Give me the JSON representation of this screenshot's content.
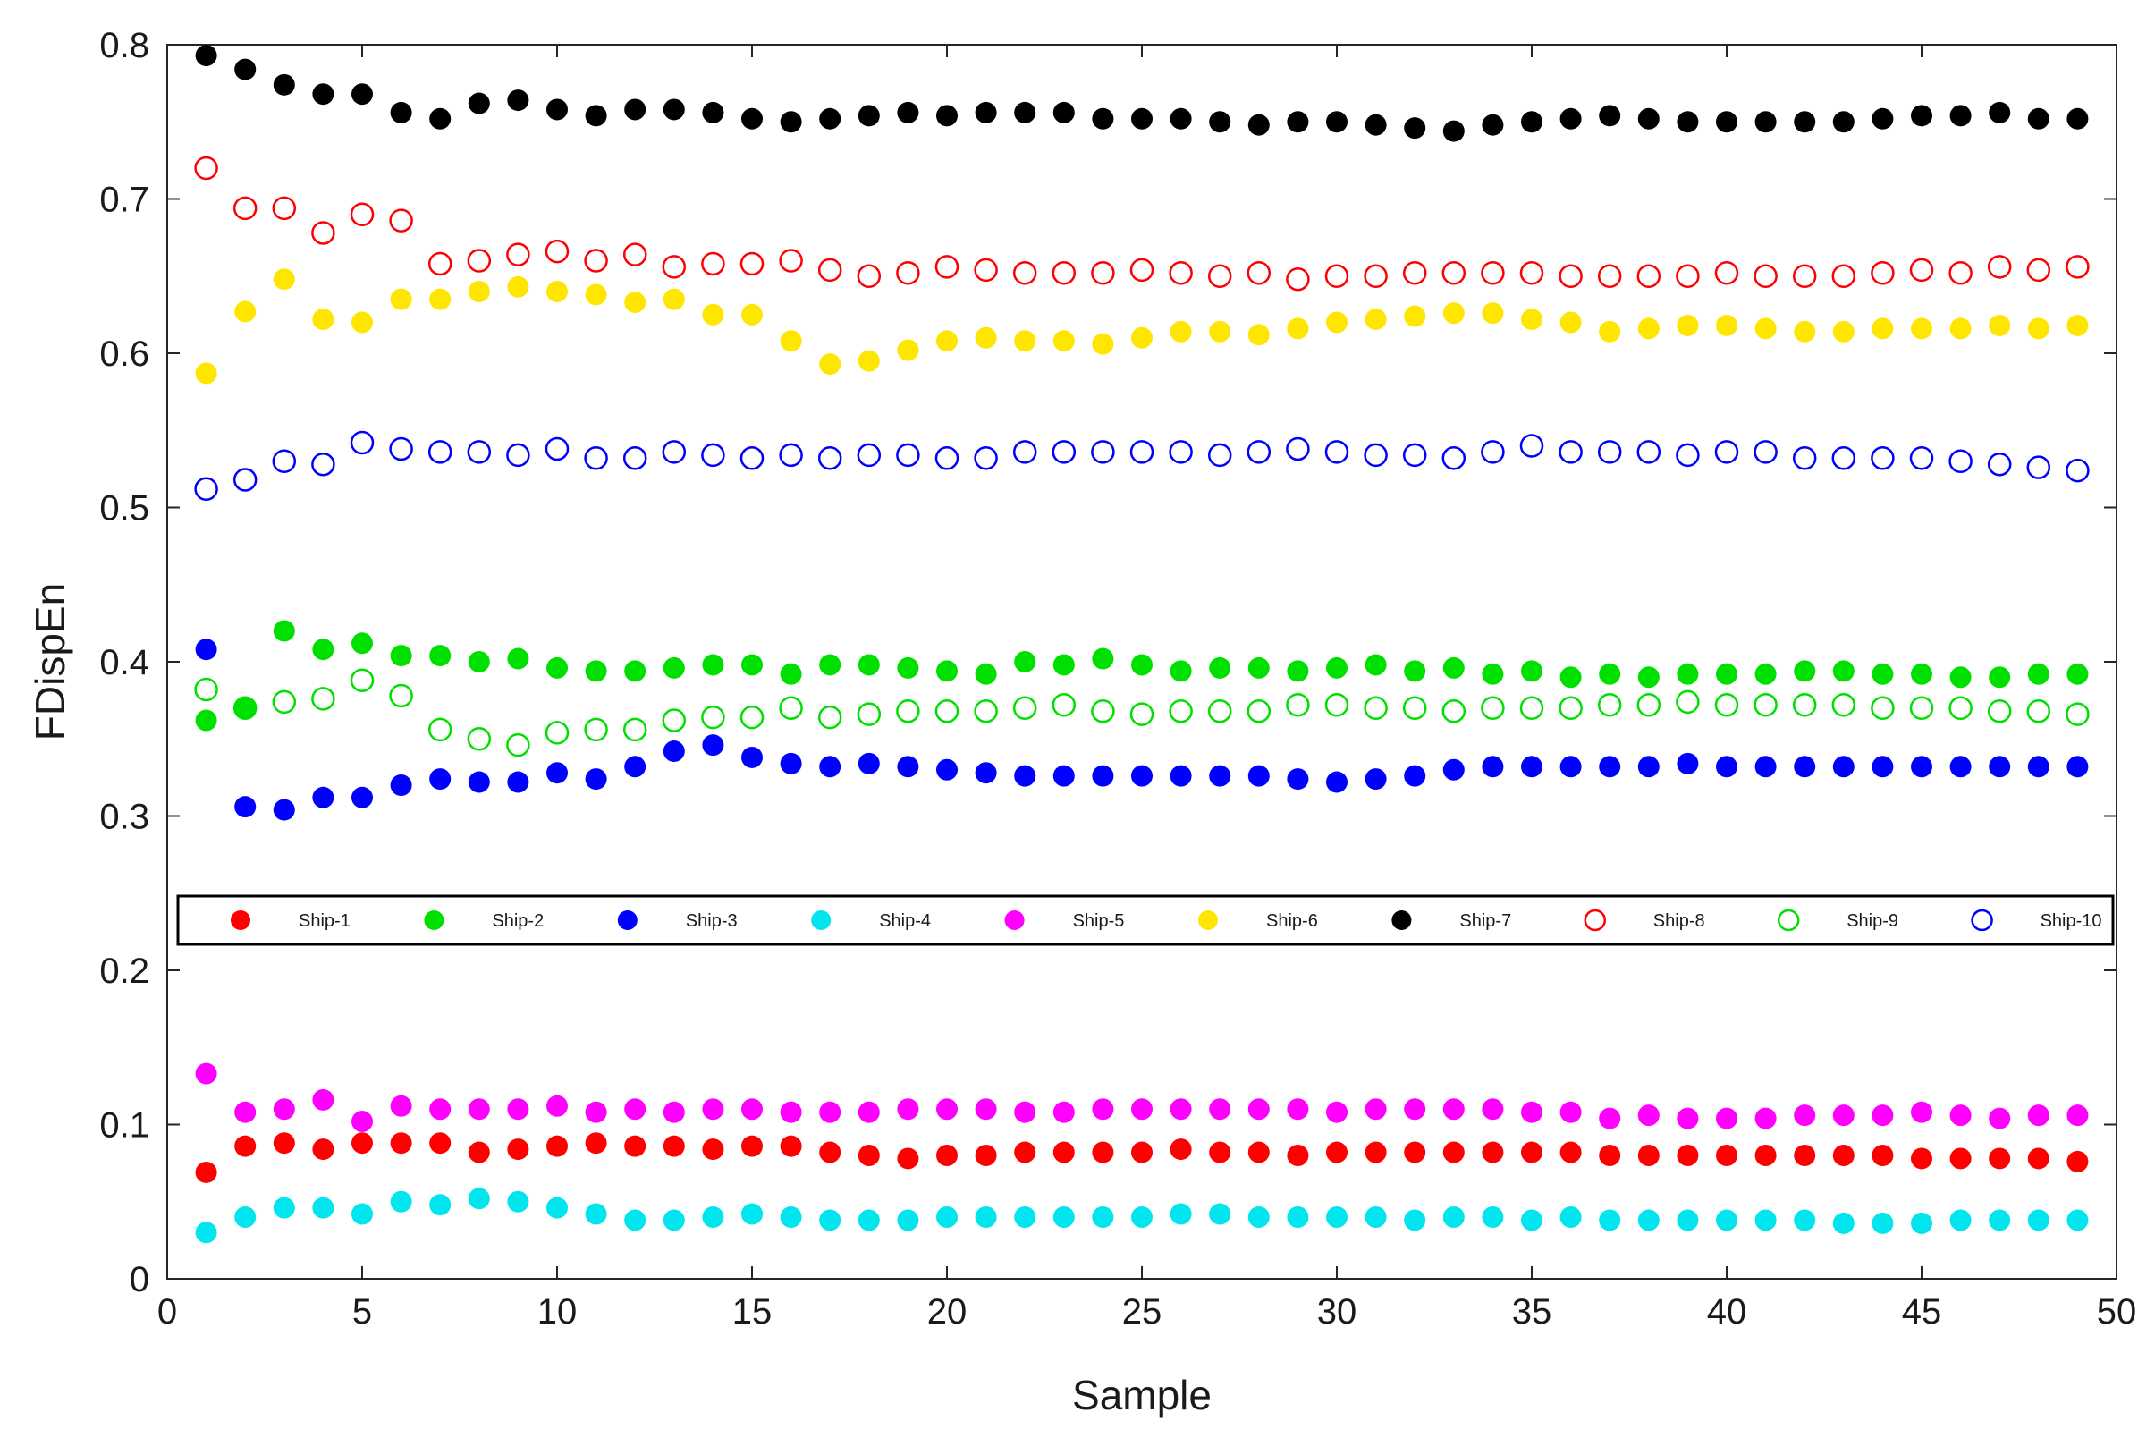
{
  "chart_data": {
    "type": "scatter",
    "title": "",
    "xlabel": "Sample",
    "ylabel": "FDispEn",
    "xlim": [
      0,
      50
    ],
    "ylim": [
      0,
      0.8
    ],
    "xticks": [
      "0",
      "5",
      "10",
      "15",
      "20",
      "25",
      "30",
      "35",
      "40",
      "45",
      "50"
    ],
    "yticks": [
      "0",
      "0.1",
      "0.2",
      "0.3",
      "0.4",
      "0.5",
      "0.6",
      "0.7",
      "0.8"
    ],
    "grid": false,
    "legend_position": "middle",
    "x": [
      1,
      2,
      3,
      4,
      5,
      6,
      7,
      8,
      9,
      10,
      11,
      12,
      13,
      14,
      15,
      16,
      17,
      18,
      19,
      20,
      21,
      22,
      23,
      24,
      25,
      26,
      27,
      28,
      29,
      30,
      31,
      32,
      33,
      34,
      35,
      36,
      37,
      38,
      39,
      40,
      41,
      42,
      43,
      44,
      45,
      46,
      47,
      48,
      49
    ],
    "series": [
      {
        "name": "Ship-1",
        "color": "#ff0000",
        "marker": "filled",
        "values": [
          0.069,
          0.086,
          0.088,
          0.084,
          0.088,
          0.088,
          0.088,
          0.082,
          0.084,
          0.086,
          0.088,
          0.086,
          0.086,
          0.084,
          0.086,
          0.086,
          0.082,
          0.08,
          0.078,
          0.08,
          0.08,
          0.082,
          0.082,
          0.082,
          0.082,
          0.084,
          0.082,
          0.082,
          0.08,
          0.082,
          0.082,
          0.082,
          0.082,
          0.082,
          0.082,
          0.082,
          0.08,
          0.08,
          0.08,
          0.08,
          0.08,
          0.08,
          0.08,
          0.08,
          0.078,
          0.078,
          0.078,
          0.078,
          0.076
        ]
      },
      {
        "name": "Ship-2",
        "color": "#00e000",
        "marker": "filled",
        "values": [
          0.362,
          0.37,
          0.42,
          0.408,
          0.412,
          0.404,
          0.404,
          0.4,
          0.402,
          0.396,
          0.394,
          0.394,
          0.396,
          0.398,
          0.398,
          0.392,
          0.398,
          0.398,
          0.396,
          0.394,
          0.392,
          0.4,
          0.398,
          0.402,
          0.398,
          0.394,
          0.396,
          0.396,
          0.394,
          0.396,
          0.398,
          0.394,
          0.396,
          0.392,
          0.394,
          0.39,
          0.392,
          0.39,
          0.392,
          0.392,
          0.392,
          0.394,
          0.394,
          0.392,
          0.392,
          0.39,
          0.39,
          0.392,
          0.392
        ]
      },
      {
        "name": "Ship-3",
        "color": "#0000ff",
        "marker": "filled",
        "values": [
          0.408,
          0.306,
          0.304,
          0.312,
          0.312,
          0.32,
          0.324,
          0.322,
          0.322,
          0.328,
          0.324,
          0.332,
          0.342,
          0.346,
          0.338,
          0.334,
          0.332,
          0.334,
          0.332,
          0.33,
          0.328,
          0.326,
          0.326,
          0.326,
          0.326,
          0.326,
          0.326,
          0.326,
          0.324,
          0.322,
          0.324,
          0.326,
          0.33,
          0.332,
          0.332,
          0.332,
          0.332,
          0.332,
          0.334,
          0.332,
          0.332,
          0.332,
          0.332,
          0.332,
          0.332,
          0.332,
          0.332,
          0.332,
          0.332
        ]
      },
      {
        "name": "Ship-4",
        "color": "#00e5ee",
        "marker": "filled",
        "values": [
          0.03,
          0.04,
          0.046,
          0.046,
          0.042,
          0.05,
          0.048,
          0.052,
          0.05,
          0.046,
          0.042,
          0.038,
          0.038,
          0.04,
          0.042,
          0.04,
          0.038,
          0.038,
          0.038,
          0.04,
          0.04,
          0.04,
          0.04,
          0.04,
          0.04,
          0.042,
          0.042,
          0.04,
          0.04,
          0.04,
          0.04,
          0.038,
          0.04,
          0.04,
          0.038,
          0.04,
          0.038,
          0.038,
          0.038,
          0.038,
          0.038,
          0.038,
          0.036,
          0.036,
          0.036,
          0.038,
          0.038,
          0.038,
          0.038
        ]
      },
      {
        "name": "Ship-5",
        "color": "#ff00ff",
        "marker": "filled",
        "values": [
          0.133,
          0.108,
          0.11,
          0.116,
          0.102,
          0.112,
          0.11,
          0.11,
          0.11,
          0.112,
          0.108,
          0.11,
          0.108,
          0.11,
          0.11,
          0.108,
          0.108,
          0.108,
          0.11,
          0.11,
          0.11,
          0.108,
          0.108,
          0.11,
          0.11,
          0.11,
          0.11,
          0.11,
          0.11,
          0.108,
          0.11,
          0.11,
          0.11,
          0.11,
          0.108,
          0.108,
          0.104,
          0.106,
          0.104,
          0.104,
          0.104,
          0.106,
          0.106,
          0.106,
          0.108,
          0.106,
          0.104,
          0.106,
          0.106
        ]
      },
      {
        "name": "Ship-6",
        "color": "#ffe600",
        "marker": "filled",
        "values": [
          0.587,
          0.627,
          0.648,
          0.622,
          0.62,
          0.635,
          0.635,
          0.64,
          0.643,
          0.64,
          0.638,
          0.633,
          0.635,
          0.625,
          0.625,
          0.608,
          0.593,
          0.595,
          0.602,
          0.608,
          0.61,
          0.608,
          0.608,
          0.606,
          0.61,
          0.614,
          0.614,
          0.612,
          0.616,
          0.62,
          0.622,
          0.624,
          0.626,
          0.626,
          0.622,
          0.62,
          0.614,
          0.616,
          0.618,
          0.618,
          0.616,
          0.614,
          0.614,
          0.616,
          0.616,
          0.616,
          0.618,
          0.616,
          0.618
        ]
      },
      {
        "name": "Ship-7",
        "color": "#000000",
        "marker": "filled",
        "values": [
          0.793,
          0.784,
          0.774,
          0.768,
          0.768,
          0.756,
          0.752,
          0.762,
          0.764,
          0.758,
          0.754,
          0.758,
          0.758,
          0.756,
          0.752,
          0.75,
          0.752,
          0.754,
          0.756,
          0.754,
          0.756,
          0.756,
          0.756,
          0.752,
          0.752,
          0.752,
          0.75,
          0.748,
          0.75,
          0.75,
          0.748,
          0.746,
          0.744,
          0.748,
          0.75,
          0.752,
          0.754,
          0.752,
          0.75,
          0.75,
          0.75,
          0.75,
          0.75,
          0.752,
          0.754,
          0.754,
          0.756,
          0.752,
          0.752
        ]
      },
      {
        "name": "Ship-8",
        "color": "#ff0000",
        "marker": "open",
        "values": [
          0.72,
          0.694,
          0.694,
          0.678,
          0.69,
          0.686,
          0.658,
          0.66,
          0.664,
          0.666,
          0.66,
          0.664,
          0.656,
          0.658,
          0.658,
          0.66,
          0.654,
          0.65,
          0.652,
          0.656,
          0.654,
          0.652,
          0.652,
          0.652,
          0.654,
          0.652,
          0.65,
          0.652,
          0.648,
          0.65,
          0.65,
          0.652,
          0.652,
          0.652,
          0.652,
          0.65,
          0.65,
          0.65,
          0.65,
          0.652,
          0.65,
          0.65,
          0.65,
          0.652,
          0.654,
          0.652,
          0.656,
          0.654,
          0.656
        ]
      },
      {
        "name": "Ship-9",
        "color": "#00e000",
        "marker": "open",
        "values": [
          0.382,
          0.37,
          0.374,
          0.376,
          0.388,
          0.378,
          0.356,
          0.35,
          0.346,
          0.354,
          0.356,
          0.356,
          0.362,
          0.364,
          0.364,
          0.37,
          0.364,
          0.366,
          0.368,
          0.368,
          0.368,
          0.37,
          0.372,
          0.368,
          0.366,
          0.368,
          0.368,
          0.368,
          0.372,
          0.372,
          0.37,
          0.37,
          0.368,
          0.37,
          0.37,
          0.37,
          0.372,
          0.372,
          0.374,
          0.372,
          0.372,
          0.372,
          0.372,
          0.37,
          0.37,
          0.37,
          0.368,
          0.368,
          0.366
        ]
      },
      {
        "name": "Ship-10",
        "color": "#0000ff",
        "marker": "open",
        "values": [
          0.512,
          0.518,
          0.53,
          0.528,
          0.542,
          0.538,
          0.536,
          0.536,
          0.534,
          0.538,
          0.532,
          0.532,
          0.536,
          0.534,
          0.532,
          0.534,
          0.532,
          0.534,
          0.534,
          0.532,
          0.532,
          0.536,
          0.536,
          0.536,
          0.536,
          0.536,
          0.534,
          0.536,
          0.538,
          0.536,
          0.534,
          0.534,
          0.532,
          0.536,
          0.54,
          0.536,
          0.536,
          0.536,
          0.534,
          0.536,
          0.536,
          0.532,
          0.532,
          0.532,
          0.532,
          0.53,
          0.528,
          0.526,
          0.524
        ]
      }
    ]
  }
}
